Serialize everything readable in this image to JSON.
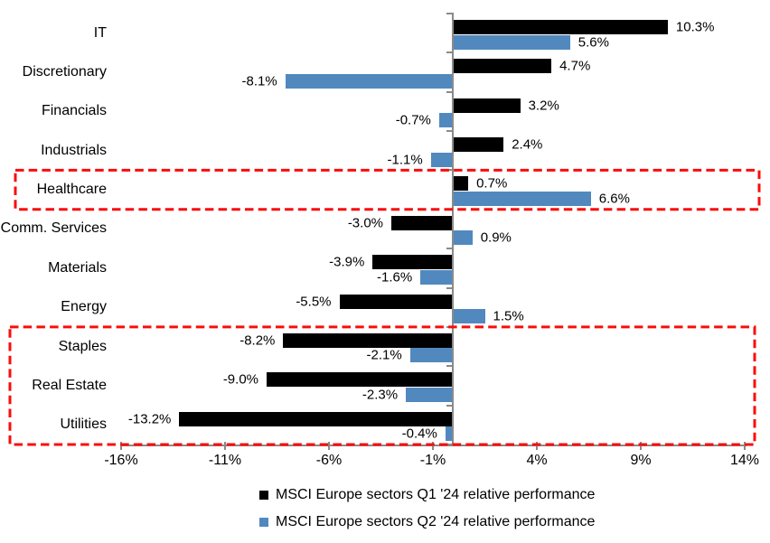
{
  "chart_data": {
    "type": "bar",
    "orientation": "horizontal",
    "title": "",
    "categories": [
      "IT",
      "Discretionary",
      "Financials",
      "Industrials",
      "Healthcare",
      "Comm. Services",
      "Materials",
      "Energy",
      "Staples",
      "Real Estate",
      "Utilities"
    ],
    "series": [
      {
        "name": "MSCI Europe sectors Q1 '24 relative performance",
        "color": "#000000",
        "values": [
          10.3,
          4.7,
          3.2,
          2.4,
          0.7,
          -3.0,
          -3.9,
          -5.5,
          -8.2,
          -9.0,
          -13.2
        ],
        "labels": [
          "10.3%",
          "4.7%",
          "3.2%",
          "2.4%",
          "0.7%",
          "-3.0%",
          "-3.9%",
          "-5.5%",
          "-8.2%",
          "-9.0%",
          "-13.2%"
        ]
      },
      {
        "name": "MSCI Europe sectors Q2 '24 relative performance",
        "color": "#5189BE",
        "values": [
          5.6,
          -8.1,
          -0.7,
          -1.1,
          6.6,
          0.9,
          -1.6,
          1.5,
          -2.1,
          -2.3,
          -0.4
        ],
        "labels": [
          "5.6%",
          "-8.1%",
          "-0.7%",
          "-1.1%",
          "6.6%",
          "0.9%",
          "-1.6%",
          "1.5%",
          "-2.1%",
          "-2.3%",
          "-0.4%"
        ]
      }
    ],
    "x_axis": {
      "tick_labels": [
        "-16%",
        "-11%",
        "-6%",
        "-1%",
        "4%",
        "9%",
        "14%"
      ],
      "tick_values": [
        -16,
        -11,
        -6,
        -1,
        4,
        9,
        14
      ],
      "min": -16,
      "max": 14,
      "unit": "%"
    },
    "ylabel": "",
    "xlabel": "",
    "grid": false,
    "legend_position": "bottom",
    "highlights": [
      {
        "name": "healthcare-highlight",
        "categories": [
          "Healthcare"
        ],
        "row_start": 4,
        "row_end": 4,
        "color": "#F90D0B"
      },
      {
        "name": "defensives-highlight",
        "categories": [
          "Staples",
          "Real Estate",
          "Utilities"
        ],
        "row_start": 8,
        "row_end": 10,
        "color": "#F90D0B"
      }
    ]
  },
  "colors": {
    "axis": "#8a8a8a",
    "text": "#000000",
    "background": "#ffffff"
  }
}
